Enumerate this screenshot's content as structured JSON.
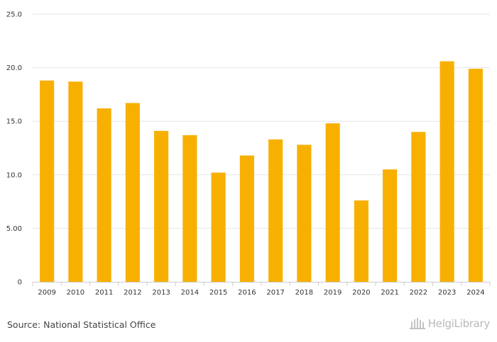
{
  "chart_data": {
    "type": "bar",
    "categories": [
      "2009",
      "2010",
      "2011",
      "2012",
      "2013",
      "2014",
      "2015",
      "2016",
      "2017",
      "2018",
      "2019",
      "2020",
      "2021",
      "2022",
      "2023",
      "2024"
    ],
    "values": [
      18.8,
      18.7,
      16.2,
      16.7,
      14.1,
      13.7,
      10.2,
      11.8,
      13.3,
      12.8,
      14.8,
      7.6,
      10.5,
      14.0,
      20.6,
      19.9
    ],
    "ylim": [
      0,
      25
    ],
    "yticks": [
      0,
      5,
      10,
      15,
      20,
      25
    ],
    "ytick_labels": [
      "0",
      "5.00",
      "10.0",
      "15.0",
      "20.0",
      "25.0"
    ],
    "bar_color": "#f8b000",
    "grid": true,
    "title": "",
    "xlabel": "",
    "ylabel": ""
  },
  "footer": {
    "source": "Source: National Statistical Office",
    "logo_text": "HelgiLibrary"
  }
}
